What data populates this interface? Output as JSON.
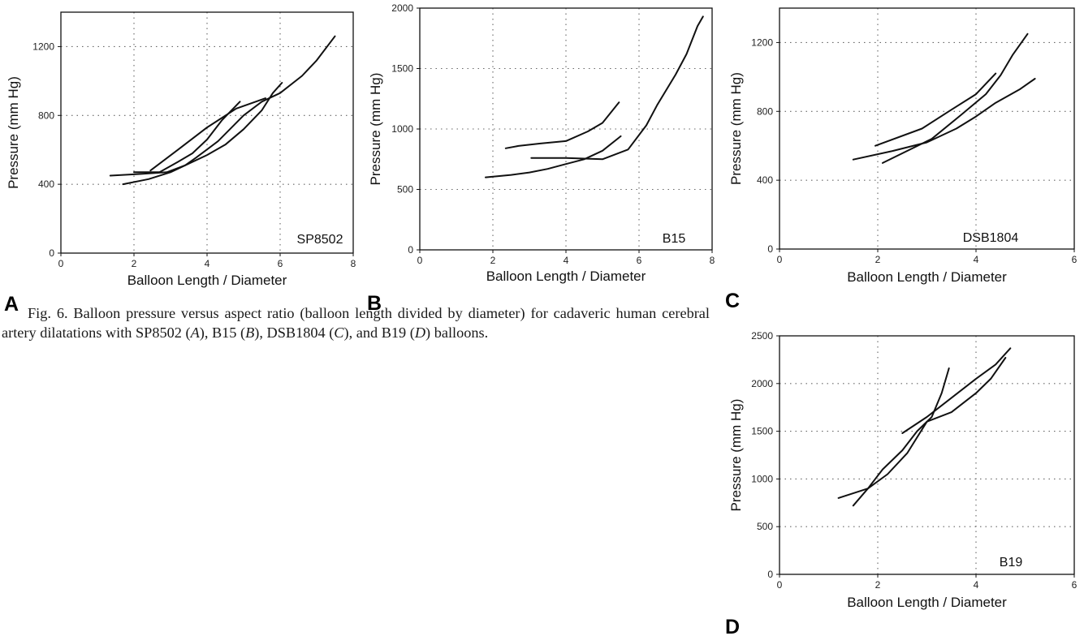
{
  "caption": {
    "prefix": "Fig. 6.",
    "text_1": "Balloon pressure versus aspect ratio (balloon length divided by diameter) for cadaveric human cerebral artery dilatations with SP8502 (",
    "A": "A",
    "text_2": "), B15 (",
    "B": "B",
    "text_3": "), DSB1804 (",
    "C": "C",
    "text_4": "), and B19 (",
    "D": "D",
    "text_5": ") balloons."
  },
  "chart_data": [
    {
      "panel": "A",
      "type": "line",
      "label": "SP8502",
      "xlabel": "Balloon Length / Diameter",
      "ylabel": "Pressure (mm Hg)",
      "xlim": [
        0,
        8
      ],
      "ylim": [
        0,
        1400
      ],
      "xticks": [
        0,
        2,
        4,
        6,
        8
      ],
      "yticks": [
        0,
        400,
        800,
        1200
      ],
      "grid": "dotted",
      "series": [
        {
          "x": [
            1.35,
            2.2,
            2.9,
            3.4,
            3.7,
            4.3,
            5.0,
            5.5,
            6.0,
            6.6,
            7.0,
            7.5
          ],
          "y": [
            450,
            460,
            470,
            510,
            555,
            650,
            800,
            880,
            930,
            1030,
            1120,
            1260
          ]
        },
        {
          "x": [
            1.7,
            2.4,
            3.0,
            3.5,
            4.0,
            4.5,
            5.0,
            5.5,
            5.8,
            6.05
          ],
          "y": [
            400,
            430,
            470,
            520,
            570,
            630,
            720,
            830,
            930,
            990
          ]
        },
        {
          "x": [
            2.0,
            2.7,
            3.2,
            3.6,
            4.0,
            4.4,
            4.9
          ],
          "y": [
            470,
            470,
            530,
            580,
            660,
            770,
            880
          ]
        },
        {
          "x": [
            2.45,
            3.2,
            4.0,
            4.8,
            5.6
          ],
          "y": [
            480,
            600,
            730,
            840,
            900
          ]
        }
      ]
    },
    {
      "panel": "B",
      "type": "line",
      "label": "B15",
      "xlabel": "Balloon Length / Diameter",
      "ylabel": "Pressure (mm Hg)",
      "xlim": [
        0,
        8
      ],
      "ylim": [
        0,
        2000
      ],
      "xticks": [
        0,
        2,
        4,
        6,
        8
      ],
      "yticks": [
        0,
        500,
        1000,
        1500,
        2000
      ],
      "grid": "dotted",
      "series": [
        {
          "x": [
            2.35,
            2.7,
            3.3,
            4.0,
            4.6,
            5.0,
            5.45
          ],
          "y": [
            840,
            860,
            880,
            900,
            980,
            1050,
            1220
          ]
        },
        {
          "x": [
            1.8,
            2.5,
            3.0,
            3.5,
            4.0,
            4.5,
            5.0,
            5.5
          ],
          "y": [
            600,
            620,
            640,
            670,
            710,
            750,
            820,
            940
          ]
        },
        {
          "x": [
            3.05,
            4.0,
            5.0,
            5.7,
            6.2,
            6.5,
            7.0,
            7.3,
            7.6,
            7.75
          ],
          "y": [
            760,
            760,
            750,
            830,
            1030,
            1200,
            1450,
            1620,
            1850,
            1930
          ]
        }
      ]
    },
    {
      "panel": "C",
      "type": "line",
      "label": "DSB1804",
      "xlabel": "Balloon Length / Diameter",
      "ylabel": "Pressure (mm Hg)",
      "xlim": [
        0,
        6
      ],
      "ylim": [
        0,
        1400
      ],
      "xticks": [
        0,
        2,
        4,
        6
      ],
      "yticks": [
        0,
        400,
        800,
        1200
      ],
      "grid": "dotted",
      "series": [
        {
          "x": [
            1.5,
            2.3,
            3.0,
            3.6,
            4.0,
            4.4,
            4.9,
            5.2
          ],
          "y": [
            520,
            570,
            620,
            700,
            770,
            850,
            930,
            990
          ]
        },
        {
          "x": [
            1.95,
            2.9,
            3.5,
            4.0,
            4.4
          ],
          "y": [
            600,
            700,
            810,
            900,
            1020
          ]
        },
        {
          "x": [
            2.1,
            3.1,
            3.7,
            4.2,
            4.5,
            4.75,
            5.05
          ],
          "y": [
            500,
            640,
            780,
            900,
            1010,
            1130,
            1250
          ]
        }
      ]
    },
    {
      "panel": "D",
      "type": "line",
      "label": "B19",
      "xlabel": "Balloon Length / Diameter",
      "ylabel": "Pressure (mm Hg)",
      "xlim": [
        0,
        6
      ],
      "ylim": [
        0,
        2500
      ],
      "xticks": [
        0,
        2,
        4,
        6
      ],
      "yticks": [
        0,
        500,
        1000,
        1500,
        2000,
        2500
      ],
      "grid": "dotted",
      "series": [
        {
          "x": [
            1.2,
            1.8,
            2.2,
            2.6,
            3.0,
            3.5,
            4.0,
            4.3,
            4.6
          ],
          "y": [
            800,
            900,
            1050,
            1270,
            1600,
            1700,
            1900,
            2050,
            2270
          ]
        },
        {
          "x": [
            1.5,
            1.8,
            2.1,
            2.5,
            2.8,
            3.1,
            3.3,
            3.45
          ],
          "y": [
            720,
            900,
            1100,
            1300,
            1500,
            1650,
            1900,
            2160
          ]
        },
        {
          "x": [
            2.5,
            3.0,
            3.5,
            4.0,
            4.4,
            4.7
          ],
          "y": [
            1480,
            1650,
            1850,
            2050,
            2200,
            2370
          ]
        }
      ]
    }
  ]
}
